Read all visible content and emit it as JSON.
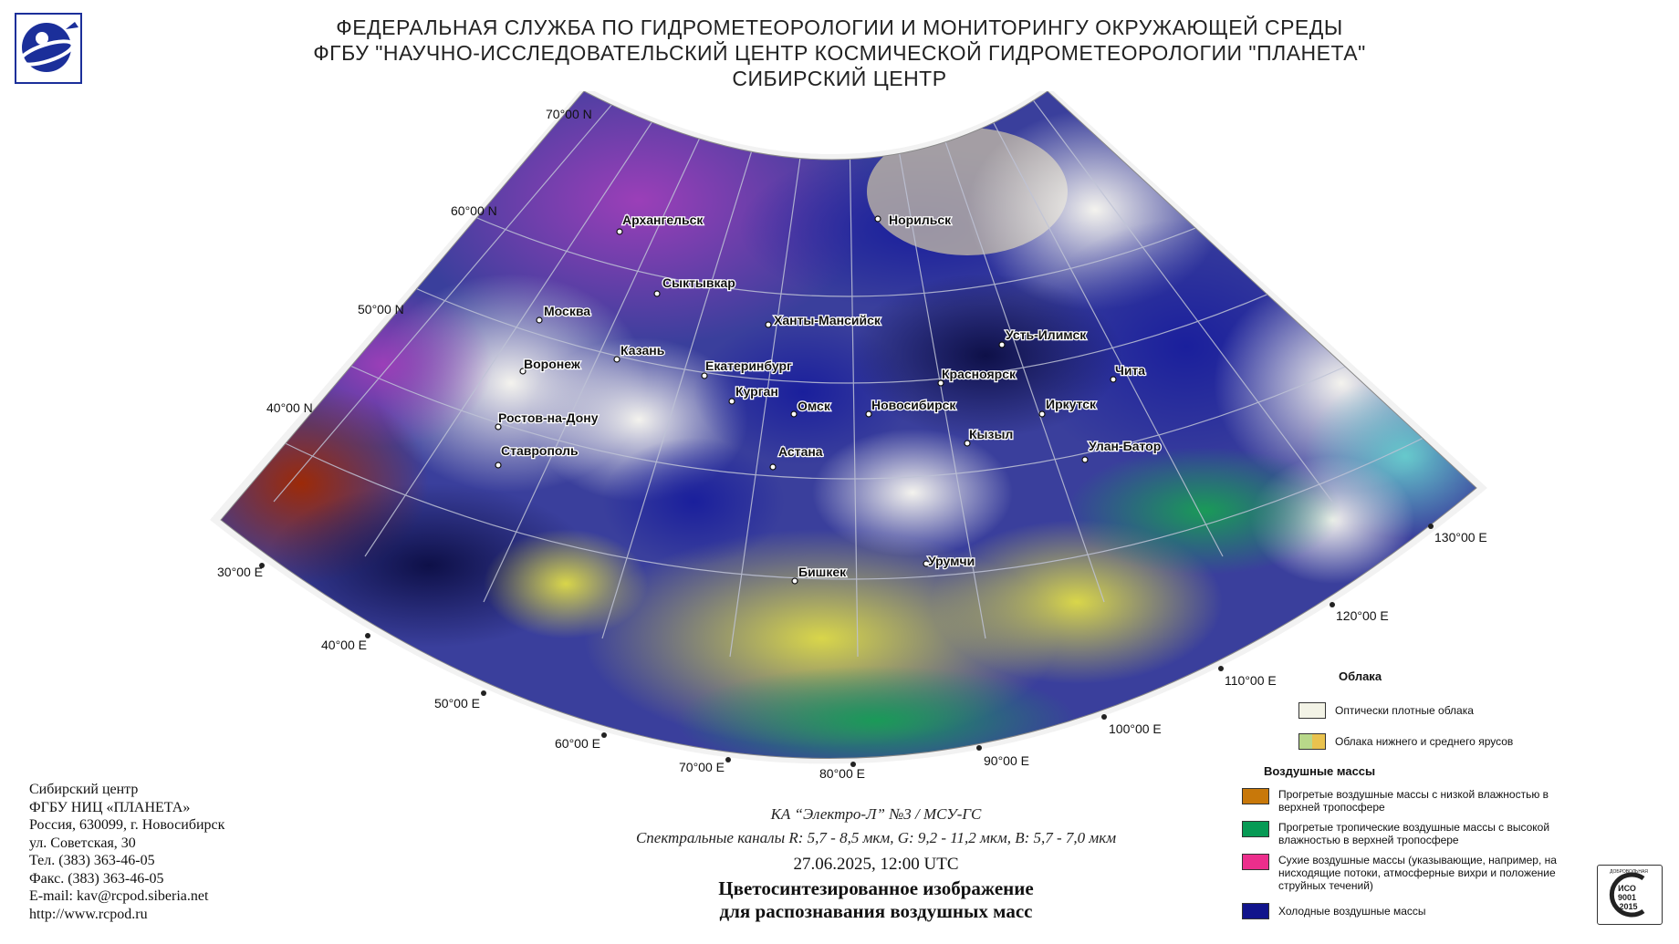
{
  "header": {
    "line1": "ФЕДЕРАЛЬНАЯ СЛУЖБА ПО ГИДРОМЕТЕОРОЛОГИИ И МОНИТОРИНГУ ОКРУЖАЮЩЕЙ СРЕДЫ",
    "line2": "ФГБУ \"НАУЧНО-ИССЛЕДОВАТЕЛЬСКИЙ ЦЕНТР КОСМИЧЕСКОЙ ГИДРОМЕТЕОРОЛОГИИ \"ПЛАНЕТА\"",
    "line3": "СИБИРСКИЙ ЦЕНТР"
  },
  "logo_icon": "planeta-logo-icon",
  "latitude_labels": [
    "70°00 N",
    "60°00 N",
    "50°00 N",
    "40°00 N"
  ],
  "longitude_labels": [
    "30°00 E",
    "40°00 E",
    "50°00 E",
    "60°00 E",
    "70°00 E",
    "80°00 E",
    "90°00 E",
    "100°00 E",
    "110°00 E",
    "120°00 E",
    "130°00 E"
  ],
  "cities": [
    "Архангельск",
    "Норильск",
    "Сыктывкар",
    "Москва",
    "Ханты-Мансийск",
    "Усть-Илимск",
    "Казань",
    "Воронеж",
    "Екатеринбург",
    "Красноярск",
    "Чита",
    "Курган",
    "Омск",
    "Новосибирск",
    "Иркутск",
    "Ростов-на-Дону",
    "Кызыл",
    "Улан-Батор",
    "Астана",
    "Ставрополь",
    "Урумчи",
    "Бишкек"
  ],
  "address": {
    "line1": "Сибирский центр",
    "line2": "ФГБУ НИЦ «ПЛАНЕТА»",
    "line3": "Россия, 630099, г. Новосибирск",
    "line4": "ул. Советская, 30",
    "line5": "Тел. (383) 363-46-05",
    "line6": "Факс. (383) 363-46-05",
    "line7": "E-mail: kav@rcpod.siberia.net",
    "line8": "http://www.rcpod.ru"
  },
  "caption": {
    "satellite": "КА “Электро-Л” №3 / МСУ-ГС",
    "channels": "Спектральные каналы R: 5,7 - 8,5 мкм, G: 9,2 - 11,2 мкм, B: 5,7 - 7,0 мкм",
    "datetime": "27.06.2025, 12:00 UTC",
    "title1": "Цветосинтезированное изображение",
    "title2": "для распознавания воздушных масс"
  },
  "legend": {
    "clouds_heading": "Облака",
    "dense_clouds": "Оптически плотные облака",
    "low_mid_clouds": "Облака нижнего и среднего ярусов",
    "airmass_heading": "Воздушные массы",
    "warm_low": "Прогретые воздушные массы с низкой влажностью в верхней тропосфере",
    "warm_tropical": "Прогретые тропичеcкие воздушные массы с высокой влажностью в верхней тропосфере",
    "dry": "Сухие воздушные массы (указывающие, например, на нисходящие потоки, атмосферные вихри и положение струйных течений)",
    "cold": "Холодные воздушные массы",
    "colors": {
      "dense": "#f3f3e6",
      "low_a": "#b8d88a",
      "low_b": "#e9c24e",
      "warm_low": "#c8780a",
      "warm_tropical": "#079a55",
      "dry": "#ec2e8c",
      "cold": "#11148c"
    }
  },
  "iso_badge": {
    "top": "ДОБРОВОЛЬНАЯ",
    "line1": "ИСО",
    "line2": "9001",
    "line3": "-2015"
  }
}
